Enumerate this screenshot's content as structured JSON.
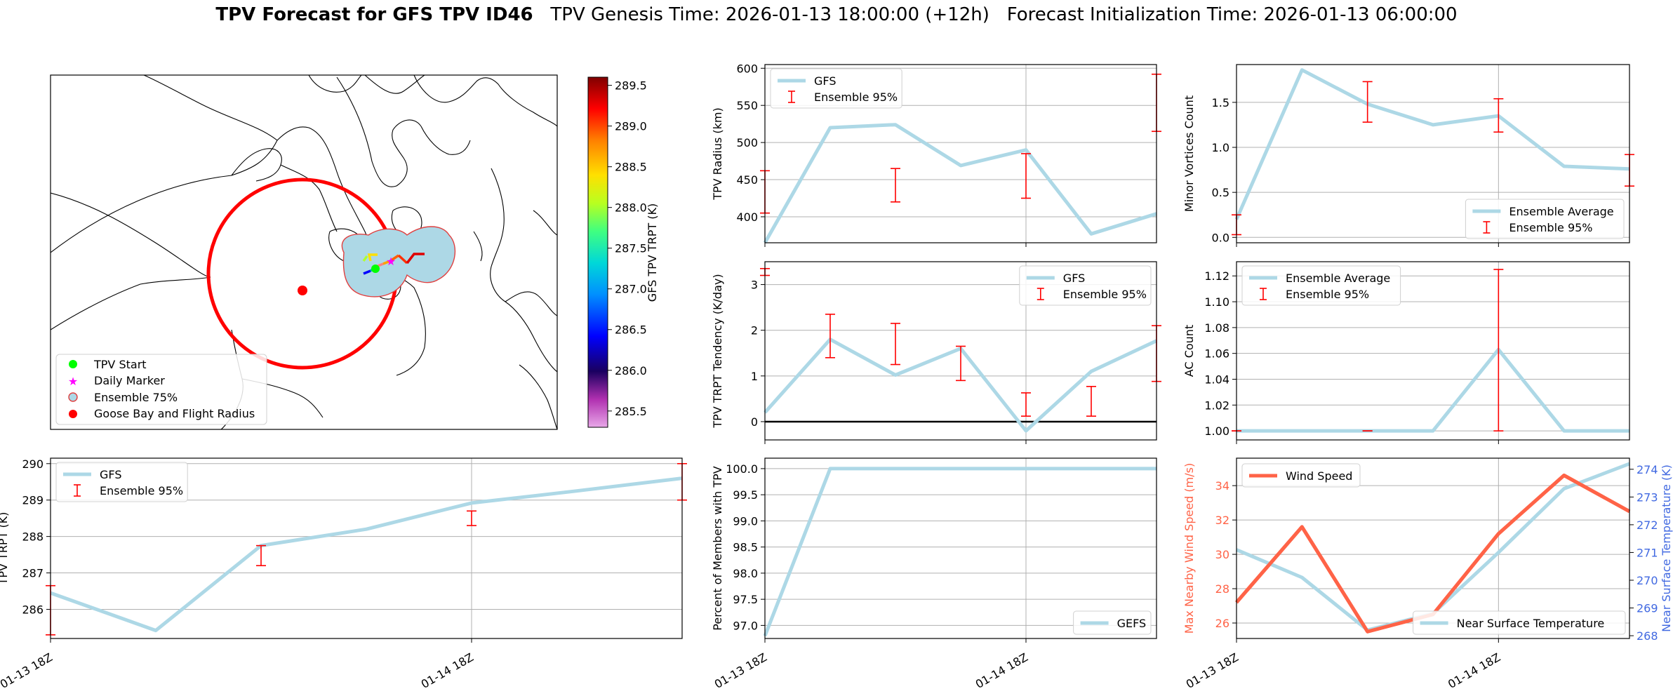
{
  "figure": {
    "title_bold": "TPV Forecast for GFS TPV ID46",
    "title_rest": "TPV Genesis Time: 2026-01-13 18:00:00 (+12h)   Forecast Initialization Time: 2026-01-13 06:00:00"
  },
  "map": {
    "legend": [
      "TPV Start",
      "Daily Marker",
      "Ensemble 75%",
      "Goose Bay and Flight Radius"
    ],
    "colorbar": {
      "label": "GFS TPV TRPT (K)",
      "min": 285.3,
      "max": 289.6,
      "ticks": [
        "285.5",
        "286.0",
        "286.5",
        "287.0",
        "287.5",
        "288.0",
        "288.5",
        "289.0",
        "289.5"
      ]
    }
  },
  "chart_data": [
    {
      "id": "radius",
      "type": "line",
      "ylabel": "TPV Radius (km)",
      "ylim": [
        365,
        605
      ],
      "yticks": [
        "400",
        "450",
        "500",
        "550",
        "600"
      ],
      "x": [
        0,
        1,
        2,
        3,
        4,
        5,
        6
      ],
      "series": [
        {
          "name": "GFS",
          "values": [
            365,
            520,
            524,
            469,
            490,
            377,
            404
          ]
        }
      ],
      "errorbars": [
        [
          0,
          405,
          462
        ],
        [
          2,
          420,
          465
        ],
        [
          4,
          425,
          485
        ],
        [
          6,
          515,
          592
        ]
      ],
      "legend": [
        "GFS",
        "Ensemble 95%"
      ],
      "legend_loc": "upper left"
    },
    {
      "id": "minor",
      "type": "line",
      "ylabel": "Minor Vortices Count",
      "ylim": [
        -0.06,
        1.92
      ],
      "yticks": [
        "0.0",
        "0.5",
        "1.0",
        "1.5"
      ],
      "x": [
        0,
        1,
        2,
        3,
        4,
        5,
        6
      ],
      "series": [
        {
          "name": "Ensemble Average",
          "values": [
            0.2,
            1.86,
            1.48,
            1.25,
            1.35,
            0.79,
            0.76
          ]
        }
      ],
      "errorbars": [
        [
          0,
          0.03,
          0.25
        ],
        [
          2,
          1.28,
          1.73
        ],
        [
          4,
          1.17,
          1.54
        ],
        [
          6,
          0.57,
          0.92
        ]
      ],
      "legend": [
        "Ensemble Average",
        "Ensemble 95%"
      ],
      "legend_loc": "lower right"
    },
    {
      "id": "tendency",
      "type": "line",
      "ylabel": "TPV TRPT Tendency (K/day)",
      "ylim": [
        -0.4,
        3.5
      ],
      "yticks": [
        "0",
        "1",
        "2",
        "3"
      ],
      "x": [
        0,
        1,
        2,
        3,
        4,
        5,
        6
      ],
      "series": [
        {
          "name": "GFS",
          "values": [
            0.2,
            1.8,
            1.02,
            1.6,
            -0.2,
            1.1,
            1.77
          ]
        }
      ],
      "errorbars": [
        [
          0,
          3.2,
          3.35
        ],
        [
          1,
          1.4,
          2.35
        ],
        [
          2,
          1.25,
          2.15
        ],
        [
          3,
          0.9,
          1.65
        ],
        [
          4,
          0.12,
          0.63
        ],
        [
          5,
          0.12,
          0.77
        ],
        [
          6,
          0.88,
          2.1
        ]
      ],
      "zero_line": true,
      "legend": [
        "GFS",
        "Ensemble 95%"
      ],
      "legend_loc": "upper right"
    },
    {
      "id": "ac",
      "type": "line",
      "ylabel": "AC Count",
      "ylim": [
        0.993,
        1.131
      ],
      "yticks": [
        "1.00",
        "1.02",
        "1.04",
        "1.06",
        "1.08",
        "1.10",
        "1.12"
      ],
      "x": [
        0,
        1,
        2,
        3,
        4,
        5,
        6
      ],
      "series": [
        {
          "name": "Ensemble Average",
          "values": [
            1.0,
            1.0,
            1.0,
            1.0,
            1.063,
            1.0,
            1.0
          ]
        }
      ],
      "errorbars": [
        [
          0,
          1.0,
          1.0
        ],
        [
          2,
          1.0,
          1.0
        ],
        [
          4,
          1.0,
          1.125
        ]
      ],
      "legend": [
        "Ensemble Average",
        "Ensemble 95%"
      ],
      "legend_loc": "upper left"
    },
    {
      "id": "trpt",
      "type": "line",
      "ylabel": "TPV TRPT (K)",
      "ylim": [
        285.2,
        290.15
      ],
      "yticks": [
        "286",
        "287",
        "288",
        "289",
        "290"
      ],
      "x": [
        0,
        1,
        2,
        3,
        4,
        5,
        6
      ],
      "xticks": [
        "01-13 18Z",
        "01-14 18Z"
      ],
      "xtick_at": [
        0,
        4
      ],
      "series": [
        {
          "name": "GFS",
          "values": [
            286.45,
            285.42,
            287.75,
            288.2,
            288.92,
            289.25,
            289.6
          ]
        }
      ],
      "errorbars": [
        [
          0,
          285.3,
          286.65
        ],
        [
          2,
          287.2,
          287.75
        ],
        [
          4,
          288.3,
          288.7
        ],
        [
          6,
          289.0,
          290.0
        ]
      ],
      "legend": [
        "GFS",
        "Ensemble 95%"
      ],
      "legend_loc": "upper left"
    },
    {
      "id": "members",
      "type": "line",
      "ylabel": "Percent of Members with TPV",
      "ylim": [
        96.75,
        100.2
      ],
      "yticks": [
        "97.0",
        "97.5",
        "98.0",
        "98.5",
        "99.0",
        "99.5",
        "100.0"
      ],
      "x": [
        0,
        1,
        2,
        3,
        4,
        5,
        6
      ],
      "xticks": [
        "01-13 18Z",
        "01-14 18Z"
      ],
      "xtick_at": [
        0,
        4
      ],
      "series": [
        {
          "name": "GEFS",
          "values": [
            96.8,
            100,
            100,
            100,
            100,
            100,
            100
          ]
        }
      ],
      "errorbars": [],
      "legend": [
        "GEFS"
      ],
      "legend_loc": "lower right"
    },
    {
      "id": "wind",
      "type": "line",
      "ylabel": "Max Nearby Wind Speed (m/s)",
      "ylim": [
        25.1,
        35.6
      ],
      "yticks": [
        "26",
        "28",
        "30",
        "32",
        "34"
      ],
      "ylabel_right": "Near Surface Temperature (K)",
      "ylim_right": [
        267.9,
        274.4
      ],
      "yticks_right": [
        "268",
        "269",
        "270",
        "271",
        "272",
        "273",
        "274"
      ],
      "x": [
        0,
        1,
        2,
        3,
        4,
        5,
        6
      ],
      "xticks": [
        "01-13 18Z",
        "01-14 18Z"
      ],
      "xtick_at": [
        0,
        4
      ],
      "series": [
        {
          "name": "Wind Speed",
          "axis": "left",
          "values": [
            27.2,
            31.6,
            25.5,
            26.5,
            31.2,
            34.6,
            32.5
          ]
        },
        {
          "name": "Near Surface Temperature",
          "axis": "right",
          "values": [
            271.1,
            270.1,
            268.2,
            268.8,
            271.0,
            273.3,
            274.2
          ]
        }
      ],
      "legend": [
        "Wind Speed",
        "Near Surface Temperature"
      ]
    }
  ]
}
